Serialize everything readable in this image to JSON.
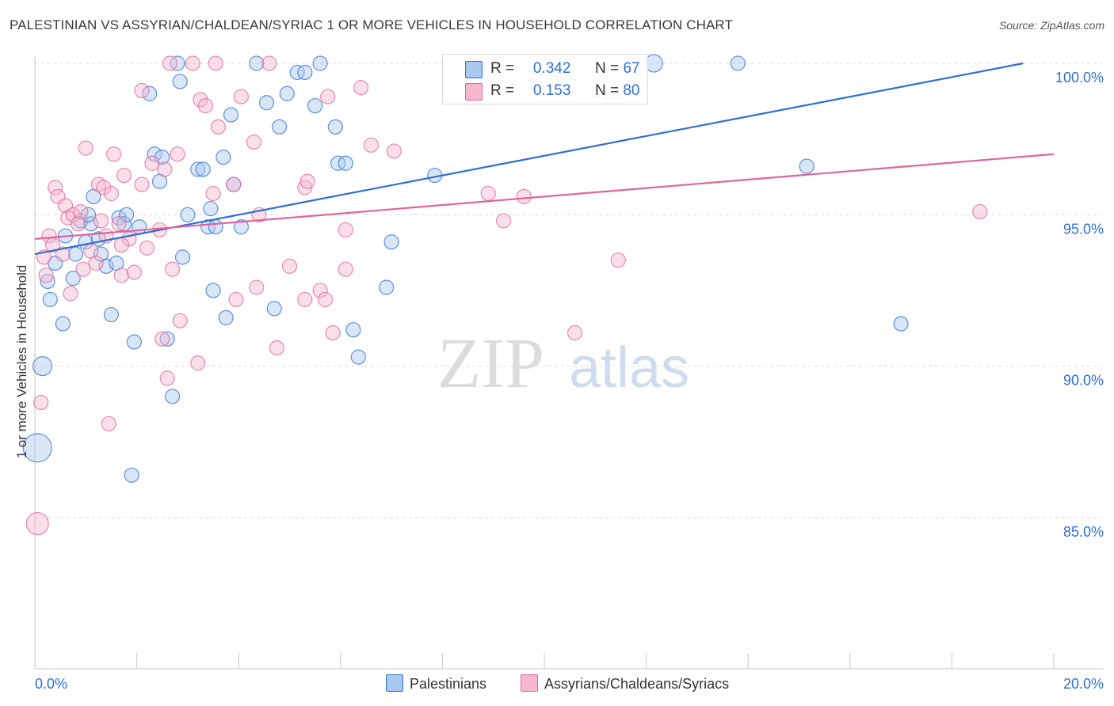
{
  "header": {
    "title": "PALESTINIAN VS ASSYRIAN/CHALDEAN/SYRIAC 1 OR MORE VEHICLES IN HOUSEHOLD CORRELATION CHART",
    "source": "Source: ZipAtlas.com"
  },
  "legend": {
    "r_label": "R =",
    "n_label": "N =",
    "series1": {
      "r": "0.342",
      "n": "67"
    },
    "series2": {
      "r": "0.153",
      "n": "80"
    }
  },
  "bottom_legend": {
    "series1": "Palestinians",
    "series2": "Assyrians/Chaldeans/Syriacs"
  },
  "axes": {
    "ylabel": "1 or more Vehicles in Household",
    "x_min_label": "0.0%",
    "x_max_label": "20.0%",
    "y_ticks": [
      "100.0%",
      "95.0%",
      "90.0%",
      "85.0%"
    ]
  },
  "watermark": {
    "zip": "ZIP",
    "atlas": "atlas"
  },
  "colors": {
    "blue": "#2e6fd3",
    "blue_fill": "#a8c8f0",
    "pink": "#e0649a",
    "pink_fill": "#f5b8cf",
    "tick_text": "#2e6fd3",
    "grid": "#dcdcdc"
  },
  "chart_data": {
    "type": "scatter",
    "title": "PALESTINIAN VS ASSYRIAN/CHALDEAN/SYRIAC 1 OR MORE VEHICLES IN HOUSEHOLD CORRELATION CHART",
    "xlabel": "",
    "ylabel": "1 or more Vehicles in Household",
    "xlim": [
      0,
      20
    ],
    "ylim": [
      80.2,
      100.5
    ],
    "y_ticks": [
      85,
      90,
      95,
      100
    ],
    "grid": true,
    "legend_position": "top-center",
    "series": [
      {
        "name": "Palestinians",
        "color": "#2e6fd3",
        "regression": {
          "x": [
            0,
            19.4
          ],
          "y": [
            93.7,
            100.0
          ]
        },
        "points": [
          [
            0.15,
            90.0,
            12
          ],
          [
            0.05,
            87.3,
            18
          ],
          [
            0.25,
            92.8,
            9
          ],
          [
            0.3,
            92.2,
            9
          ],
          [
            0.4,
            93.4,
            9
          ],
          [
            0.55,
            91.4,
            9
          ],
          [
            0.6,
            94.3,
            9
          ],
          [
            0.75,
            92.9,
            9
          ],
          [
            0.8,
            93.7,
            9
          ],
          [
            0.9,
            94.8,
            9
          ],
          [
            1.0,
            94.1,
            9
          ],
          [
            1.1,
            94.7,
            9
          ],
          [
            1.15,
            95.6,
            9
          ],
          [
            1.25,
            94.2,
            9
          ],
          [
            1.3,
            93.7,
            9
          ],
          [
            1.4,
            93.3,
            9
          ],
          [
            1.5,
            91.7,
            9
          ],
          [
            1.6,
            93.4,
            9
          ],
          [
            1.65,
            94.9,
            9
          ],
          [
            1.75,
            94.7,
            9
          ],
          [
            1.8,
            95.0,
            9
          ],
          [
            1.9,
            86.4,
            9
          ],
          [
            1.95,
            90.8,
            9
          ],
          [
            2.05,
            94.6,
            9
          ],
          [
            2.25,
            99.0,
            9
          ],
          [
            2.35,
            97.0,
            9
          ],
          [
            2.45,
            96.1,
            9
          ],
          [
            2.5,
            96.9,
            9
          ],
          [
            2.6,
            90.9,
            9
          ],
          [
            2.7,
            89.0,
            9
          ],
          [
            2.8,
            100.0,
            9
          ],
          [
            2.85,
            99.4,
            9
          ],
          [
            2.9,
            93.6,
            9
          ],
          [
            3.0,
            95.0,
            9
          ],
          [
            3.2,
            96.5,
            9
          ],
          [
            3.3,
            96.5,
            9
          ],
          [
            3.4,
            94.6,
            9
          ],
          [
            3.45,
            95.2,
            9
          ],
          [
            3.5,
            92.5,
            9
          ],
          [
            3.7,
            96.9,
            9
          ],
          [
            3.75,
            91.6,
            9
          ],
          [
            3.85,
            98.3,
            9
          ],
          [
            3.9,
            96.0,
            9
          ],
          [
            4.05,
            94.6,
            9
          ],
          [
            4.35,
            100.0,
            9
          ],
          [
            4.55,
            98.7,
            9
          ],
          [
            4.7,
            91.9,
            9
          ],
          [
            4.8,
            97.9,
            9
          ],
          [
            4.95,
            99.0,
            9
          ],
          [
            5.15,
            99.7,
            9
          ],
          [
            5.3,
            99.7,
            9
          ],
          [
            5.5,
            98.6,
            9
          ],
          [
            5.6,
            100.0,
            9
          ],
          [
            5.9,
            97.9,
            9
          ],
          [
            5.95,
            96.7,
            9
          ],
          [
            6.1,
            96.7,
            9
          ],
          [
            6.25,
            91.2,
            9
          ],
          [
            6.35,
            90.3,
            9
          ],
          [
            6.9,
            92.6,
            9
          ],
          [
            7.0,
            94.1,
            9
          ],
          [
            7.85,
            96.3,
            9
          ],
          [
            12.15,
            100.0,
            11
          ],
          [
            13.8,
            100.0,
            9
          ],
          [
            15.15,
            96.6,
            9
          ],
          [
            17.0,
            91.4,
            9
          ],
          [
            3.55,
            94.6,
            9
          ],
          [
            1.05,
            95.0,
            9
          ]
        ]
      },
      {
        "name": "Assyrians/Chaldeans/Syriacs",
        "color": "#e0649a",
        "regression": {
          "x": [
            0,
            20
          ],
          "y": [
            94.2,
            97.0
          ]
        },
        "points": [
          [
            0.05,
            84.8,
            14
          ],
          [
            0.12,
            88.8,
            9
          ],
          [
            0.18,
            93.6,
            9
          ],
          [
            0.22,
            93.0,
            9
          ],
          [
            0.28,
            94.3,
            9
          ],
          [
            0.35,
            94.0,
            9
          ],
          [
            0.4,
            95.9,
            9
          ],
          [
            0.45,
            95.6,
            9
          ],
          [
            0.55,
            93.7,
            9
          ],
          [
            0.6,
            95.3,
            9
          ],
          [
            0.65,
            94.9,
            9
          ],
          [
            0.7,
            92.4,
            9
          ],
          [
            0.75,
            95.0,
            9
          ],
          [
            0.85,
            94.7,
            9
          ],
          [
            0.9,
            95.1,
            9
          ],
          [
            0.95,
            93.2,
            9
          ],
          [
            1.0,
            97.2,
            9
          ],
          [
            1.1,
            93.8,
            9
          ],
          [
            1.2,
            93.4,
            9
          ],
          [
            1.25,
            96.0,
            9
          ],
          [
            1.3,
            94.8,
            9
          ],
          [
            1.35,
            95.9,
            9
          ],
          [
            1.4,
            94.3,
            9
          ],
          [
            1.45,
            88.1,
            9
          ],
          [
            1.5,
            95.7,
            9
          ],
          [
            1.55,
            97.0,
            9
          ],
          [
            1.65,
            94.7,
            9
          ],
          [
            1.7,
            93.0,
            9
          ],
          [
            1.75,
            96.3,
            9
          ],
          [
            1.85,
            94.2,
            9
          ],
          [
            1.95,
            93.1,
            9
          ],
          [
            2.1,
            96.0,
            9
          ],
          [
            2.1,
            99.1,
            9
          ],
          [
            2.2,
            93.9,
            9
          ],
          [
            2.3,
            96.7,
            9
          ],
          [
            2.45,
            94.5,
            9
          ],
          [
            2.5,
            90.9,
            9
          ],
          [
            2.55,
            96.5,
            9
          ],
          [
            2.6,
            89.6,
            9
          ],
          [
            2.65,
            100.0,
            9
          ],
          [
            2.7,
            93.2,
            9
          ],
          [
            2.8,
            97.0,
            9
          ],
          [
            2.85,
            91.5,
            9
          ],
          [
            3.1,
            100.0,
            9
          ],
          [
            3.2,
            90.1,
            9
          ],
          [
            3.25,
            98.8,
            9
          ],
          [
            3.35,
            98.6,
            9
          ],
          [
            3.5,
            95.7,
            9
          ],
          [
            3.55,
            100.0,
            9
          ],
          [
            3.6,
            97.9,
            9
          ],
          [
            3.9,
            96.0,
            9
          ],
          [
            3.95,
            92.2,
            9
          ],
          [
            4.05,
            98.9,
            9
          ],
          [
            4.3,
            97.4,
            9
          ],
          [
            4.35,
            92.6,
            9
          ],
          [
            4.4,
            95.0,
            9
          ],
          [
            4.6,
            100.0,
            9
          ],
          [
            4.75,
            90.6,
            9
          ],
          [
            5.0,
            93.3,
            9
          ],
          [
            5.3,
            92.2,
            9
          ],
          [
            5.3,
            95.9,
            9
          ],
          [
            5.35,
            96.1,
            9
          ],
          [
            5.6,
            92.5,
            9
          ],
          [
            5.7,
            92.2,
            9
          ],
          [
            5.75,
            98.9,
            9
          ],
          [
            5.85,
            91.1,
            9
          ],
          [
            6.1,
            94.5,
            9
          ],
          [
            6.1,
            93.2,
            9
          ],
          [
            6.4,
            99.2,
            9
          ],
          [
            6.6,
            97.3,
            9
          ],
          [
            7.05,
            97.1,
            9
          ],
          [
            8.9,
            95.7,
            9
          ],
          [
            9.2,
            94.8,
            9
          ],
          [
            9.6,
            95.6,
            9
          ],
          [
            10.6,
            91.1,
            9
          ],
          [
            11.0,
            99.1,
            9
          ],
          [
            11.3,
            98.9,
            9
          ],
          [
            11.45,
            93.5,
            9
          ],
          [
            18.55,
            95.1,
            9
          ],
          [
            1.7,
            94.0,
            9
          ]
        ]
      }
    ]
  }
}
